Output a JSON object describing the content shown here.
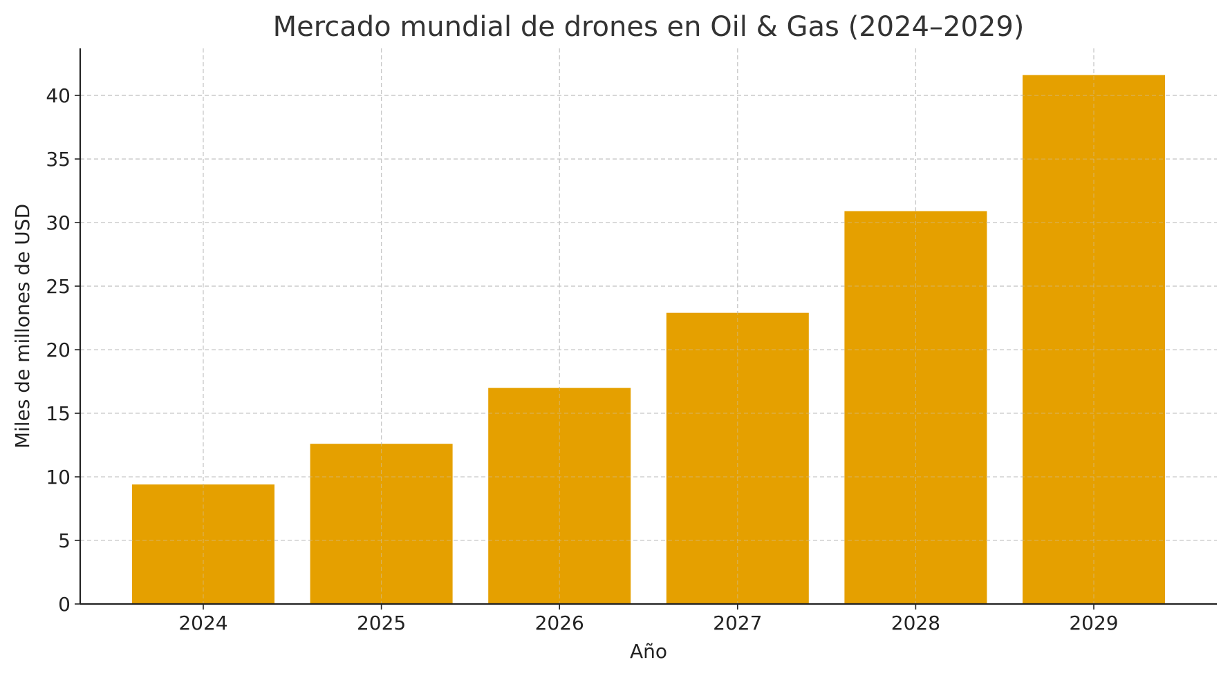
{
  "chart_data": {
    "type": "bar",
    "title": "Mercado mundial de drones en Oil & Gas (2024–2029)",
    "xlabel": "Año",
    "ylabel": "Miles de millones de USD",
    "categories": [
      "2024",
      "2025",
      "2026",
      "2027",
      "2028",
      "2029"
    ],
    "values": [
      9.4,
      12.6,
      17.0,
      22.9,
      30.9,
      41.6
    ],
    "ylim": [
      0,
      43.7
    ],
    "yticks": [
      0,
      5,
      10,
      15,
      20,
      25,
      30,
      35,
      40
    ],
    "grid": true,
    "bar_color": "#E5A000"
  }
}
